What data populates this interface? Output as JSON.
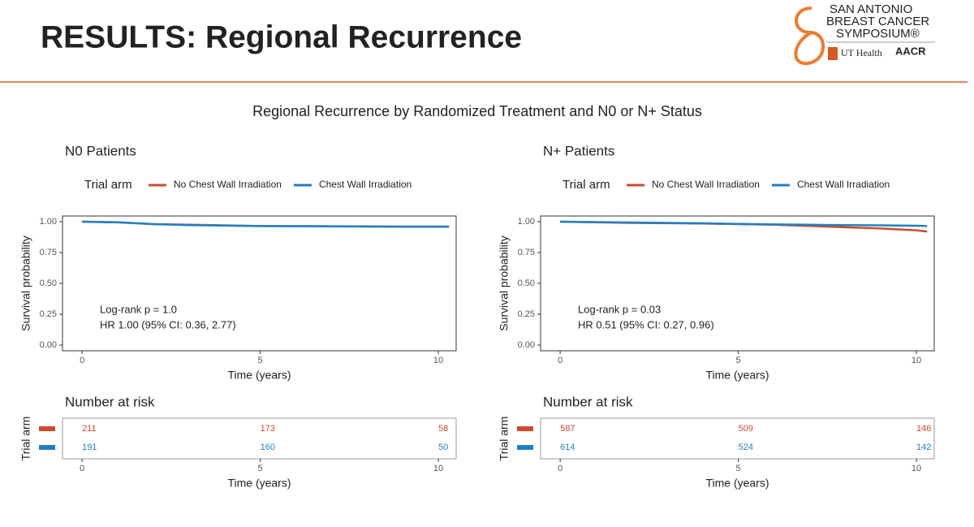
{
  "slide": {
    "title": "RESULTS: Regional Recurrence",
    "subtitle": "Regional Recurrence by Randomized Treatment and N0 or N+ Status",
    "logo": {
      "lines": [
        "SAN ANTONIO",
        "BREAST CANCER",
        "SYMPOSIUM®"
      ],
      "partner1": "UT Health",
      "partner2": "AACR"
    }
  },
  "chart_data": [
    {
      "type": "line",
      "title": "N0 Patients",
      "legend_title": "Trial arm",
      "x_label": "Time (years)",
      "y_label": "Survival probability",
      "xlim": [
        -0.55,
        10.5
      ],
      "ylim": [
        -0.046,
        1.046
      ],
      "xticks": [
        0,
        5,
        10
      ],
      "yticks": [
        {
          "value": 0,
          "label": "0.00"
        },
        {
          "value": 0.25,
          "label": "0.25"
        },
        {
          "value": 0.5,
          "label": "0.50"
        },
        {
          "value": 0.75,
          "label": "0.75"
        },
        {
          "value": 1,
          "label": "1.00"
        }
      ],
      "annotations": [
        "Log-rank p = 1.0",
        "HR 1.00 (95% CI: 0.36, 2.77)"
      ],
      "series": [
        {
          "name": "No Chest Wall Irradiation",
          "color": "#cf4a2c",
          "x": [
            0,
            1,
            2,
            3,
            5,
            7,
            9,
            10.3
          ],
          "values": [
            1.0,
            0.995,
            0.98,
            0.975,
            0.965,
            0.963,
            0.96,
            0.96
          ]
        },
        {
          "name": "Chest Wall Irradiation",
          "color": "#1f80c6",
          "x": [
            0,
            1,
            2,
            3,
            5,
            7,
            9,
            10.3
          ],
          "values": [
            1.0,
            0.995,
            0.98,
            0.972,
            0.965,
            0.962,
            0.96,
            0.96
          ]
        }
      ],
      "risk_table": {
        "title": "Number at risk",
        "y_label": "Trial arm",
        "x": [
          0,
          5,
          10
        ],
        "x_label": "Time (years)",
        "rows": [
          [
            211,
            173,
            58
          ],
          [
            191,
            160,
            50
          ]
        ]
      }
    },
    {
      "type": "line",
      "title": "N+ Patients",
      "legend_title": "Trial arm",
      "x_label": "Time (years)",
      "y_label": "Survival probability",
      "xlim": [
        -0.55,
        10.5
      ],
      "ylim": [
        -0.046,
        1.046
      ],
      "xticks": [
        0,
        5,
        10
      ],
      "yticks": [
        {
          "value": 0,
          "label": "0.00"
        },
        {
          "value": 0.25,
          "label": "0.25"
        },
        {
          "value": 0.5,
          "label": "0.50"
        },
        {
          "value": 0.75,
          "label": "0.75"
        },
        {
          "value": 1,
          "label": "1.00"
        }
      ],
      "annotations": [
        "Log-rank p = 0.03",
        "HR 0.51 (95% CI: 0.27, 0.96)"
      ],
      "series": [
        {
          "name": "No Chest Wall Irradiation",
          "color": "#cf4a2c",
          "x": [
            0,
            2,
            4,
            5,
            6,
            7,
            8,
            9,
            10,
            10.3
          ],
          "values": [
            1.0,
            0.99,
            0.985,
            0.98,
            0.975,
            0.965,
            0.955,
            0.945,
            0.93,
            0.92
          ]
        },
        {
          "name": "Chest Wall Irradiation",
          "color": "#1f80c6",
          "x": [
            0,
            2,
            4,
            5,
            6,
            7,
            8,
            9,
            10,
            10.3
          ],
          "values": [
            1.0,
            0.993,
            0.987,
            0.982,
            0.978,
            0.975,
            0.972,
            0.97,
            0.967,
            0.965
          ]
        }
      ],
      "risk_table": {
        "title": "Number at risk",
        "y_label": "Trial arm",
        "x": [
          0,
          5,
          10
        ],
        "x_label": "Time (years)",
        "rows": [
          [
            587,
            509,
            146
          ],
          [
            614,
            524,
            142
          ]
        ]
      }
    }
  ]
}
